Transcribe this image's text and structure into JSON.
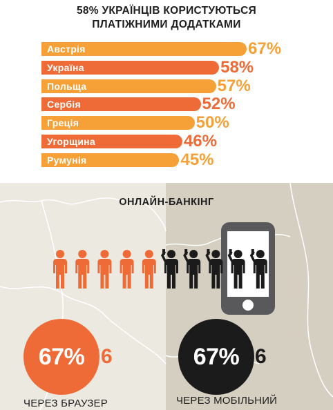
{
  "title_line1": "58% УКРАЇНЦІВ КОРИСТУЮТЬСЯ",
  "title_line2": "ПЛАТІЖНИМИ ДОДАТКАМИ",
  "chart_data": {
    "type": "bar",
    "orientation": "horizontal",
    "title": "58% УКРАЇНЦІВ КОРИСТУЮТЬСЯ ПЛАТІЖНИМИ ДОДАТКАМИ",
    "categories": [
      "Австрія",
      "Україна",
      "Польща",
      "Сербія",
      "Греція",
      "Угорщина",
      "Румунія"
    ],
    "values": [
      67,
      58,
      57,
      52,
      50,
      46,
      45
    ],
    "value_labels": [
      "67%",
      "58%",
      "57%",
      "52%",
      "50%",
      "46%",
      "45%"
    ],
    "colors": [
      "#f5a137",
      "#ee6b38",
      "#f5a137",
      "#ee6b38",
      "#f5a137",
      "#ee6b38",
      "#f5a137"
    ],
    "xlim": [
      0,
      67
    ],
    "xlabel": "",
    "ylabel": ""
  },
  "online_banking": {
    "title": "ОНЛАЙН-БАНКІНГ",
    "people_total": 10,
    "people_browser": 5,
    "browser": {
      "percent": "67%",
      "arrow": "down",
      "change": "6",
      "caption": "ЧЕРЕЗ БРАУЗЕР"
    },
    "mobile": {
      "percent": "67%",
      "arrow": "up",
      "change": "6",
      "caption": "ЧЕРЕЗ МОБІЛЬНИЙ"
    }
  },
  "colors": {
    "orange": "#ee6b38",
    "light_orange": "#f5a137",
    "dark": "#1b1b1b",
    "map_light": "#ece9e1",
    "map_dark": "#d5cfc1",
    "phone": "#59595c"
  }
}
